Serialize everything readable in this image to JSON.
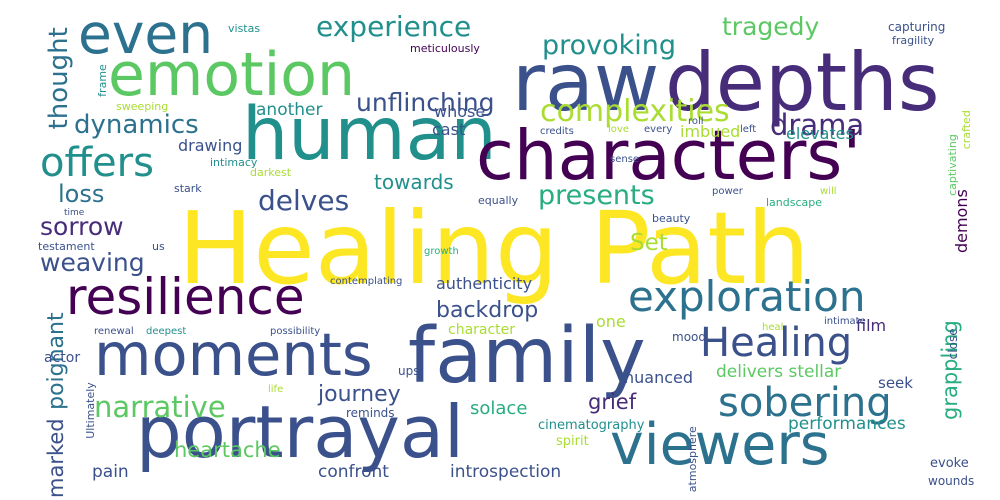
{
  "colors": {
    "background": "#ffffff",
    "palette": [
      "#440154",
      "#472c7a",
      "#3b518b",
      "#2c718e",
      "#21908d",
      "#27ad81",
      "#5cc863",
      "#aadc32",
      "#fde725"
    ]
  },
  "words": [
    {
      "text": "Healing Path",
      "color": "#fde725"
    },
    {
      "text": "raw",
      "color": "#3b518b"
    },
    {
      "text": "depths",
      "color": "#472c7a"
    },
    {
      "text": "human",
      "color": "#21908d"
    },
    {
      "text": "characters'",
      "color": "#440154"
    },
    {
      "text": "emotion",
      "color": "#5cc863"
    },
    {
      "text": "even",
      "color": "#2c718e"
    },
    {
      "text": "family",
      "color": "#3b518b"
    },
    {
      "text": "portrayal",
      "color": "#3b518b"
    },
    {
      "text": "moments",
      "color": "#3b518b"
    },
    {
      "text": "viewers",
      "color": "#2c718e"
    },
    {
      "text": "resilience",
      "color": "#440154"
    },
    {
      "text": "exploration",
      "color": "#2c718e"
    },
    {
      "text": "sobering",
      "color": "#2c718e"
    },
    {
      "text": "Healing",
      "color": "#3b518b"
    },
    {
      "text": "offers",
      "color": "#21908d"
    },
    {
      "text": "complexities",
      "color": "#aadc32"
    },
    {
      "text": "experience",
      "color": "#21908d"
    },
    {
      "text": "provoking",
      "color": "#21908d"
    },
    {
      "text": "tragedy",
      "color": "#5cc863"
    },
    {
      "text": "drama",
      "color": "#472c7a"
    },
    {
      "text": "thought",
      "color": "#2c718e"
    },
    {
      "text": "dynamics",
      "color": "#2c718e"
    },
    {
      "text": "unflinching",
      "color": "#3b518b"
    },
    {
      "text": "delves",
      "color": "#3b518b"
    },
    {
      "text": "presents",
      "color": "#27ad81"
    },
    {
      "text": "Set",
      "color": "#aadc32"
    },
    {
      "text": "loss",
      "color": "#2c718e"
    },
    {
      "text": "sorrow",
      "color": "#472c7a"
    },
    {
      "text": "weaving",
      "color": "#3b518b"
    },
    {
      "text": "towards",
      "color": "#21908d"
    },
    {
      "text": "narrative",
      "color": "#5cc863"
    },
    {
      "text": "poignant",
      "color": "#2c718e"
    },
    {
      "text": "backdrop",
      "color": "#3b518b"
    },
    {
      "text": "journey",
      "color": "#3b518b"
    },
    {
      "text": "grief",
      "color": "#472c7a"
    },
    {
      "text": "grappling",
      "color": "#27ad81"
    },
    {
      "text": "heartache",
      "color": "#5cc863"
    },
    {
      "text": "marked",
      "color": "#3b518b"
    },
    {
      "text": "demons",
      "color": "#440154"
    },
    {
      "text": "solace",
      "color": "#27ad81"
    },
    {
      "text": "performances",
      "color": "#21908d"
    },
    {
      "text": "introspection",
      "color": "#3b518b"
    },
    {
      "text": "confront",
      "color": "#3b518b"
    },
    {
      "text": "pain",
      "color": "#3b518b"
    },
    {
      "text": "delivers stellar",
      "color": "#5cc863"
    },
    {
      "text": "authenticity",
      "color": "#3b518b"
    },
    {
      "text": "whose",
      "color": "#3b518b"
    },
    {
      "text": "cast",
      "color": "#3b518b"
    },
    {
      "text": "another",
      "color": "#21908d"
    },
    {
      "text": "imbued",
      "color": "#aadc32"
    },
    {
      "text": "elevates",
      "color": "#21908d"
    },
    {
      "text": "drawing",
      "color": "#3b518b"
    },
    {
      "text": "nuanced",
      "color": "#3b518b"
    },
    {
      "text": "one",
      "color": "#aadc32"
    },
    {
      "text": "character",
      "color": "#aadc32"
    },
    {
      "text": "film",
      "color": "#472c7a"
    },
    {
      "text": "seek",
      "color": "#3b518b"
    },
    {
      "text": "mood",
      "color": "#3b518b"
    },
    {
      "text": "close",
      "color": "#3b518b"
    },
    {
      "text": "evoke",
      "color": "#3b518b"
    },
    {
      "text": "wounds",
      "color": "#3b518b"
    },
    {
      "text": "ups",
      "color": "#3b518b"
    },
    {
      "text": "actor",
      "color": "#3b518b"
    },
    {
      "text": "cinematography",
      "color": "#21908d"
    },
    {
      "text": "spirit",
      "color": "#aadc32"
    },
    {
      "text": "atmosphere",
      "color": "#3b518b"
    },
    {
      "text": "reminds",
      "color": "#3b518b"
    },
    {
      "text": "Ultimately",
      "color": "#3b518b"
    },
    {
      "text": "capturing",
      "color": "#3b518b"
    },
    {
      "text": "fragility",
      "color": "#3b518b"
    },
    {
      "text": "captivating",
      "color": "#5cc863"
    },
    {
      "text": "crafted",
      "color": "#aadc32"
    },
    {
      "text": "vistas",
      "color": "#21908d"
    },
    {
      "text": "meticulously",
      "color": "#440154"
    },
    {
      "text": "frame",
      "color": "#21908d"
    },
    {
      "text": "sweeping",
      "color": "#aadc32"
    },
    {
      "text": "roll",
      "color": "#3b518b"
    },
    {
      "text": "credits",
      "color": "#3b518b"
    },
    {
      "text": "love",
      "color": "#aadc32"
    },
    {
      "text": "left",
      "color": "#3b518b"
    },
    {
      "text": "every",
      "color": "#3b518b"
    },
    {
      "text": "sense",
      "color": "#3b518b"
    },
    {
      "text": "intimacy",
      "color": "#21908d"
    },
    {
      "text": "darkest",
      "color": "#aadc32"
    },
    {
      "text": "stark",
      "color": "#3b518b"
    },
    {
      "text": "power",
      "color": "#3b518b"
    },
    {
      "text": "will",
      "color": "#aadc32"
    },
    {
      "text": "equally",
      "color": "#3b518b"
    },
    {
      "text": "landscape",
      "color": "#27ad81"
    },
    {
      "text": "beauty",
      "color": "#3b518b"
    },
    {
      "text": "time",
      "color": "#3b518b"
    },
    {
      "text": "testament",
      "color": "#3b518b"
    },
    {
      "text": "us",
      "color": "#3b518b"
    },
    {
      "text": "growth",
      "color": "#27ad81"
    },
    {
      "text": "contemplating",
      "color": "#3b518b"
    },
    {
      "text": "renewal",
      "color": "#3b518b"
    },
    {
      "text": "deepest",
      "color": "#21908d"
    },
    {
      "text": "possibility",
      "color": "#3b518b"
    },
    {
      "text": "intimate",
      "color": "#3b518b"
    },
    {
      "text": "heal",
      "color": "#aadc32"
    },
    {
      "text": "life",
      "color": "#aadc32"
    }
  ]
}
